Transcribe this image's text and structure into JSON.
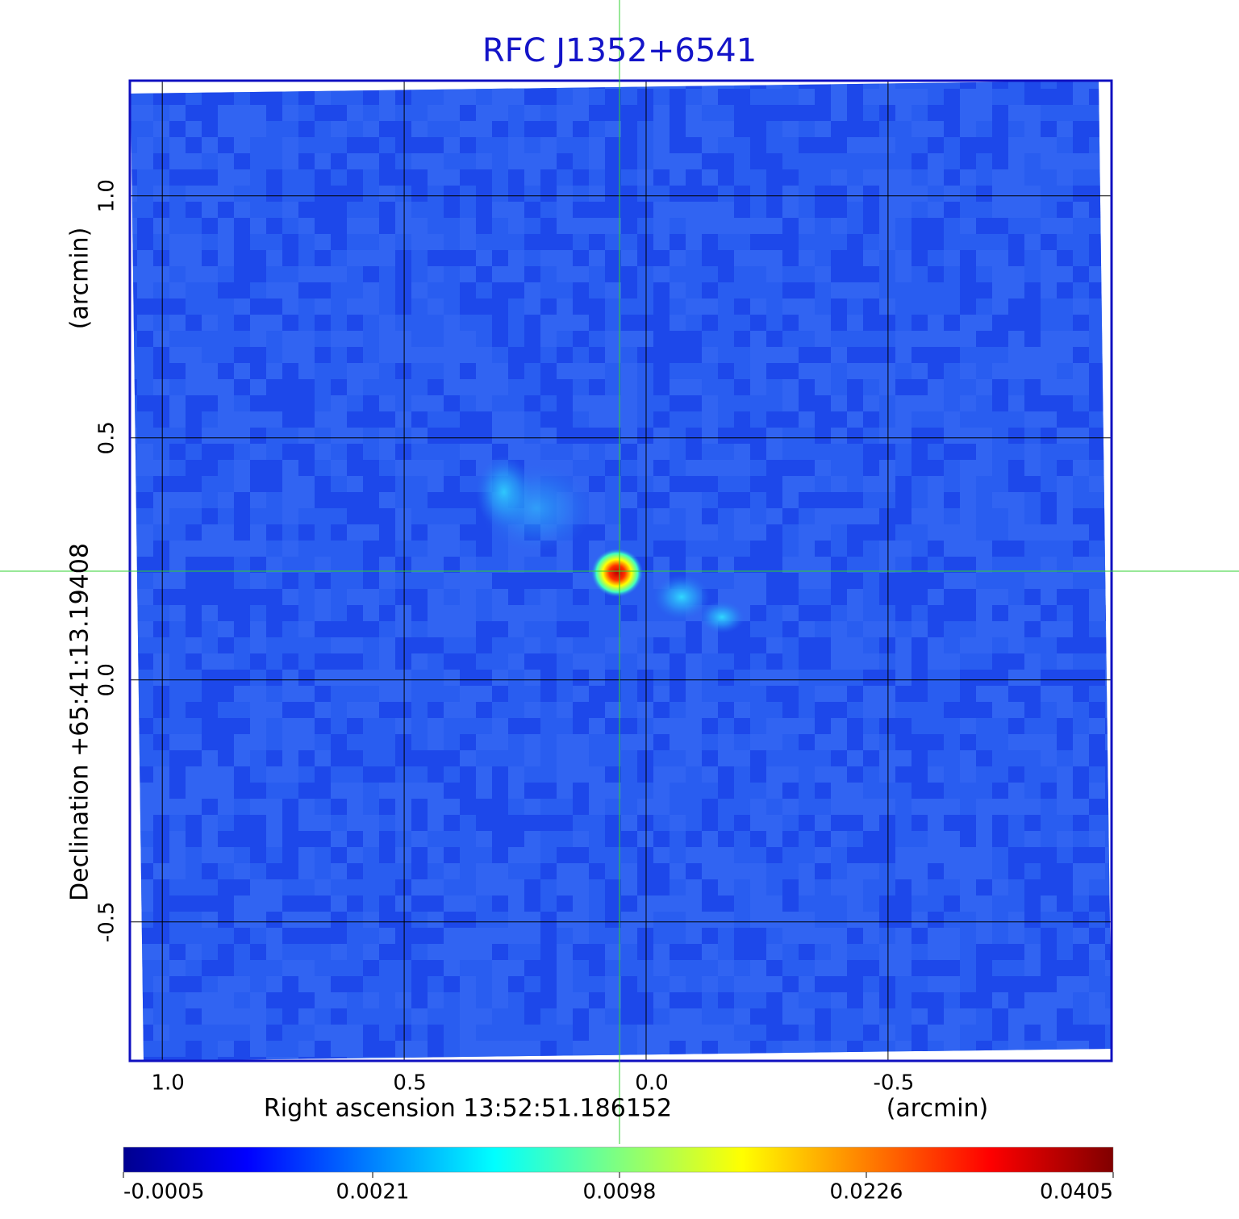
{
  "chart_data": {
    "type": "image",
    "title": "RFC J1352+6541",
    "xlabel": "Right ascension  13:52:51.186152",
    "xunit": "(arcmin)",
    "ylabel": "Declination  +65:41:13.19408",
    "yunit": "(arcmin)",
    "xlim": [
      1.067,
      -0.962
    ],
    "ylim": [
      -0.787,
      1.238
    ],
    "xticks": [
      {
        "value": 1,
        "label": "1.0"
      },
      0.5,
      {
        "value": 0,
        "label": "0.0"
      },
      -0.5
    ],
    "yticks": [
      {
        "value": 1,
        "label": "1.0"
      },
      0.5,
      {
        "value": 0,
        "label": "0.0"
      },
      -0.5
    ],
    "grid": true,
    "colorbar": {
      "scale": "sqrt",
      "clim": [
        -0.0005,
        0.0405
      ],
      "ticks": [
        -0.0005,
        0.0021,
        0.0098,
        0.0226,
        0.0405
      ]
    }
  }
}
